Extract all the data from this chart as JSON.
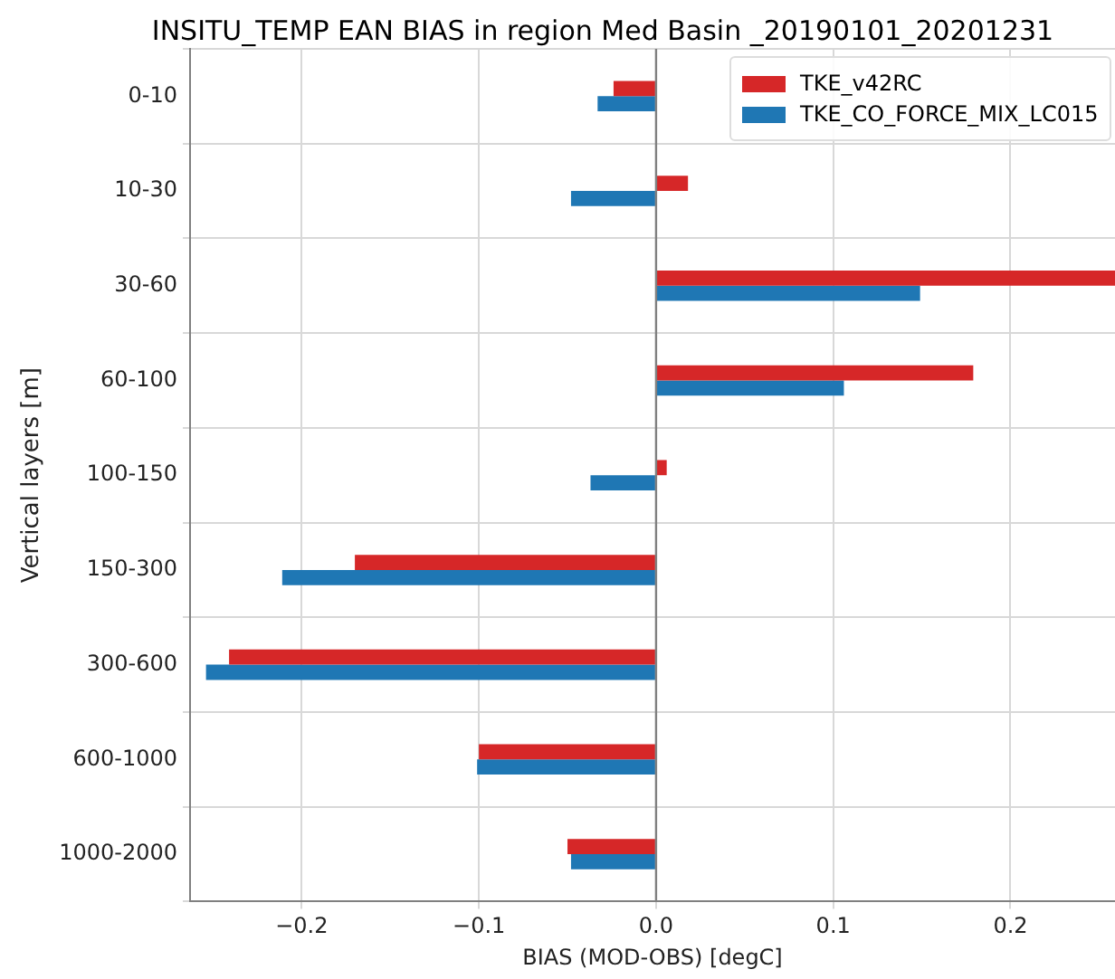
{
  "chart_data": {
    "type": "bar",
    "orientation": "horizontal",
    "title": "INSITU_TEMP EAN BIAS in region Med Basin _20190101_20201231",
    "xlabel": "BIAS (MOD-OBS) [degC]",
    "ylabel": "Vertical layers [m]",
    "categories": [
      "0-10",
      "10-30",
      "30-60",
      "60-100",
      "100-150",
      "150-300",
      "300-600",
      "600-1000",
      "1000-2000"
    ],
    "series": [
      {
        "name": "TKE_v42RC",
        "color": "#d62728",
        "values": [
          -0.024,
          0.018,
          0.259,
          0.179,
          0.006,
          -0.17,
          -0.241,
          -0.1,
          -0.05
        ]
      },
      {
        "name": "TKE_CO_FORCE_MIX_LC015",
        "color": "#1f77b4",
        "values": [
          -0.033,
          -0.048,
          0.149,
          0.106,
          -0.037,
          -0.211,
          -0.254,
          -0.101,
          -0.048
        ]
      }
    ],
    "xlim": [
      -0.263,
      0.259
    ],
    "xticks": [
      {
        "value": -0.2,
        "label": "−0.2"
      },
      {
        "value": -0.1,
        "label": "−0.1"
      },
      {
        "value": 0,
        "label": "0.0"
      },
      {
        "value": 0.1,
        "label": "0.1"
      },
      {
        "value": 0.2,
        "label": "0.2"
      }
    ],
    "ref_lines": [
      {
        "axis": "x",
        "value": 0,
        "color": "#808080"
      }
    ],
    "grid": true,
    "legend": "top right"
  }
}
